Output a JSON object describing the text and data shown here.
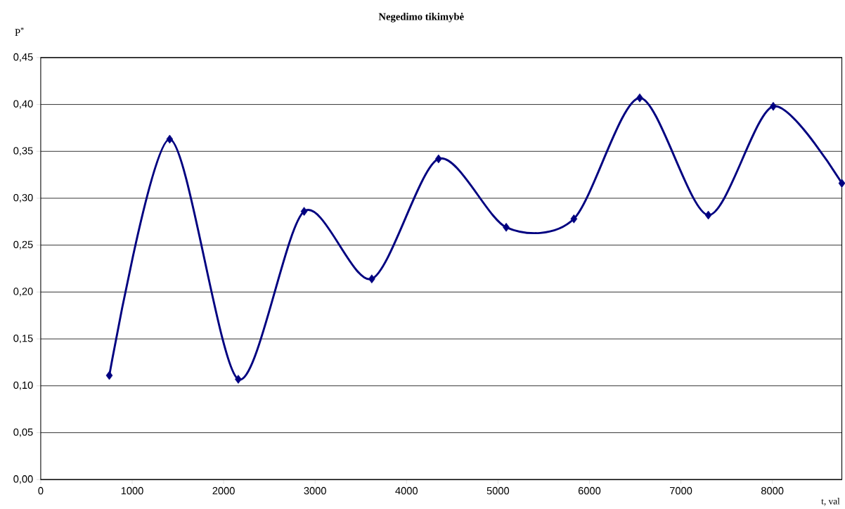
{
  "chart_data": {
    "type": "line",
    "title": "Negedimo tikimybė",
    "xlabel": "t, val",
    "ylabel": "P$^{*}$",
    "x": [
      750,
      1410,
      2160,
      2880,
      3620,
      4350,
      5090,
      5830,
      6550,
      7300,
      8010,
      8760
    ],
    "series": [
      {
        "color": "#000080",
        "values": [
          0.111,
          0.363,
          0.107,
          0.286,
          0.214,
          0.342,
          0.269,
          0.278,
          0.407,
          0.282,
          0.398,
          0.316
        ]
      }
    ],
    "xlim": [
      0,
      8760
    ],
    "xticks": [
      0,
      1000,
      2000,
      3000,
      4000,
      5000,
      6000,
      7000,
      8000
    ],
    "ylim": [
      0,
      0.45
    ],
    "yticks": [
      {
        "value": 0,
        "label": "0,00"
      },
      {
        "value": 0.05,
        "label": "0,05"
      },
      {
        "value": 0.1,
        "label": "0,10"
      },
      {
        "value": 0.15,
        "label": "0,15"
      },
      {
        "value": 0.2,
        "label": "0,20"
      },
      {
        "value": 0.25,
        "label": "0,25"
      },
      {
        "value": 0.3,
        "label": "0,30"
      },
      {
        "value": 0.35,
        "label": "0,35"
      },
      {
        "value": 0.4,
        "label": "0,40"
      },
      {
        "value": 0.45,
        "label": "0,45"
      }
    ],
    "grid": "y",
    "marker": "diamond",
    "line_style": "solid"
  }
}
